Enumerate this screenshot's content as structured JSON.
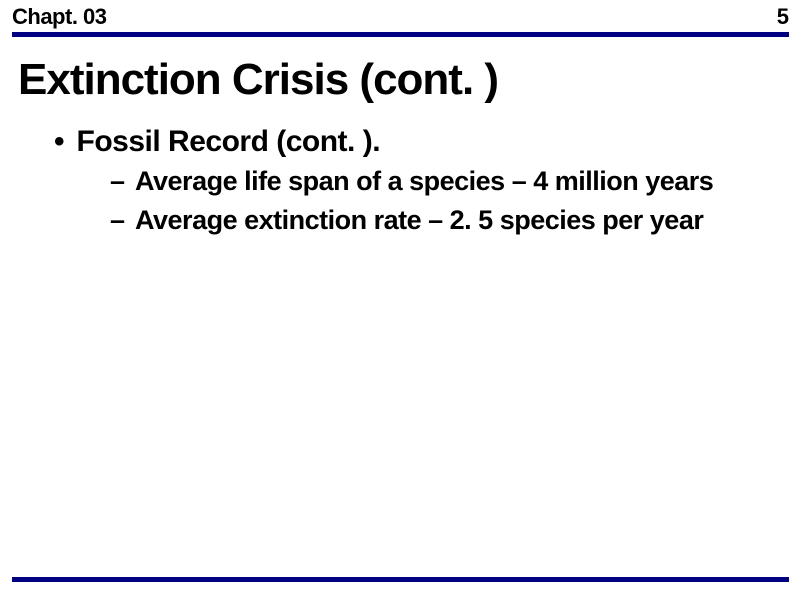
{
  "header": {
    "chapter": "Chapt. 03",
    "page": "5"
  },
  "title": "Extinction Crisis (cont. )",
  "bullets": {
    "level1_text": "Fossil Record (cont. ).",
    "level2": [
      "Average life span of a species – 4 million years",
      "Average extinction rate – 2. 5 species per year"
    ]
  },
  "colors": {
    "rule": "#000080",
    "text": "#000000",
    "background": "#ffffff"
  }
}
